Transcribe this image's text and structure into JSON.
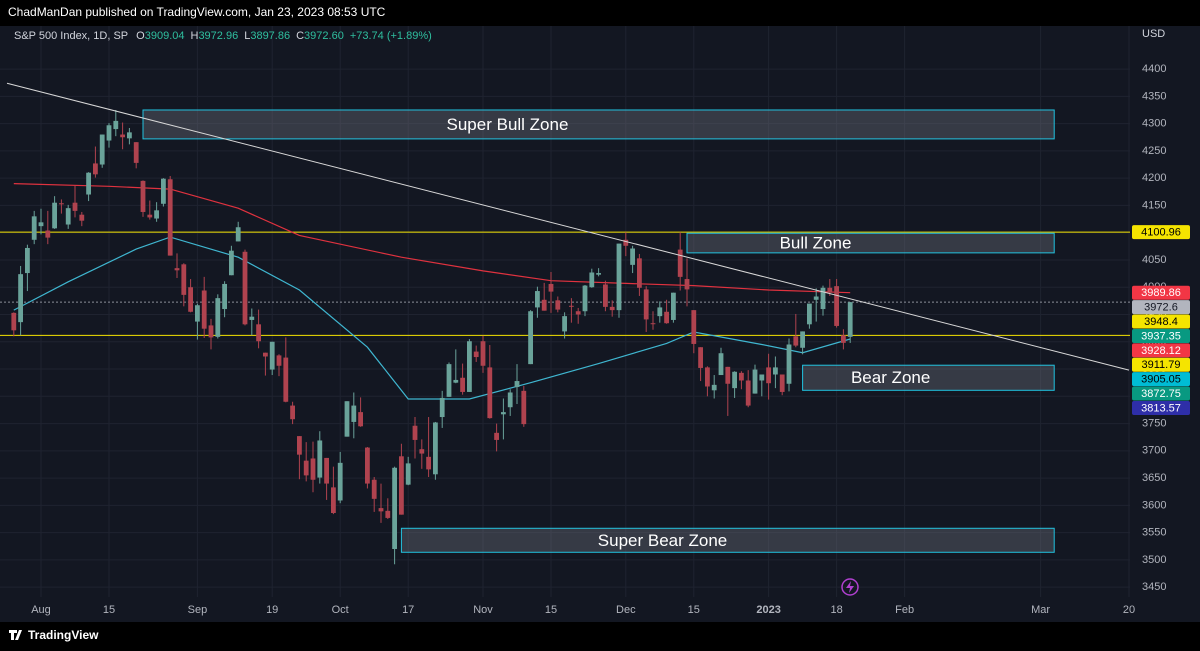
{
  "header": {
    "publisher": "ChadManDan published on TradingView.com, Jan 23, 2023 08:53 UTC",
    "symbol": "S&P 500 Index, 1D, SP",
    "ohlc": [
      {
        "key": "O",
        "value": "3909.04"
      },
      {
        "key": "H",
        "value": "3972.96"
      },
      {
        "key": "L",
        "value": "3897.86"
      },
      {
        "key": "C",
        "value": "3972.60"
      }
    ],
    "change": "+73.74 (+1.89%)"
  },
  "currency": "USD",
  "footer": "TradingView",
  "chart_data": {
    "type": "candlestick",
    "up_color": "#6aa39a",
    "down_color": "#b0434f",
    "grid": true,
    "categories": [
      "2022-07-26",
      "2022-07-27",
      "2022-07-28",
      "2022-07-29",
      "2022-08-01",
      "2022-08-02",
      "2022-08-03",
      "2022-08-04",
      "2022-08-05",
      "2022-08-08",
      "2022-08-09",
      "2022-08-10",
      "2022-08-11",
      "2022-08-12",
      "2022-08-15",
      "2022-08-16",
      "2022-08-17",
      "2022-08-18",
      "2022-08-19",
      "2022-08-22",
      "2022-08-23",
      "2022-08-24",
      "2022-08-25",
      "2022-08-26",
      "2022-08-29",
      "2022-08-30",
      "2022-08-31",
      "2022-09-01",
      "2022-09-02",
      "2022-09-06",
      "2022-09-07",
      "2022-09-08",
      "2022-09-09",
      "2022-09-12",
      "2022-09-13",
      "2022-09-14",
      "2022-09-15",
      "2022-09-16",
      "2022-09-19",
      "2022-09-20",
      "2022-09-21",
      "2022-09-22",
      "2022-09-23",
      "2022-09-26",
      "2022-09-27",
      "2022-09-28",
      "2022-09-29",
      "2022-09-30",
      "2022-10-03",
      "2022-10-04",
      "2022-10-05",
      "2022-10-06",
      "2022-10-07",
      "2022-10-10",
      "2022-10-11",
      "2022-10-12",
      "2022-10-13",
      "2022-10-14",
      "2022-10-17",
      "2022-10-18",
      "2022-10-19",
      "2022-10-20",
      "2022-10-21",
      "2022-10-24",
      "2022-10-25",
      "2022-10-26",
      "2022-10-27",
      "2022-10-28",
      "2022-10-31",
      "2022-11-01",
      "2022-11-02",
      "2022-11-03",
      "2022-11-04",
      "2022-11-07",
      "2022-11-08",
      "2022-11-09",
      "2022-11-10",
      "2022-11-11",
      "2022-11-14",
      "2022-11-15",
      "2022-11-16",
      "2022-11-17",
      "2022-11-18",
      "2022-11-21",
      "2022-11-22",
      "2022-11-23",
      "2022-11-25",
      "2022-11-28",
      "2022-11-29",
      "2022-11-30",
      "2022-12-01",
      "2022-12-02",
      "2022-12-05",
      "2022-12-06",
      "2022-12-07",
      "2022-12-08",
      "2022-12-09",
      "2022-12-12",
      "2022-12-13",
      "2022-12-14",
      "2022-12-15",
      "2022-12-16",
      "2022-12-19",
      "2022-12-20",
      "2022-12-21",
      "2022-12-22",
      "2022-12-23",
      "2022-12-27",
      "2022-12-28",
      "2022-12-29",
      "2022-12-30",
      "2023-01-03",
      "2023-01-04",
      "2023-01-05",
      "2023-01-06",
      "2023-01-09",
      "2023-01-10",
      "2023-01-11",
      "2023-01-12",
      "2023-01-13",
      "2023-01-17",
      "2023-01-18",
      "2023-01-19",
      "2023-01-20"
    ],
    "open": [
      3953,
      3936,
      4026,
      4087,
      4112,
      4104,
      4108,
      4154,
      4115,
      4155,
      4133,
      4170,
      4227,
      4225,
      4269,
      4290,
      4280,
      4273,
      4266,
      4195,
      4133,
      4126,
      4153,
      4198,
      4035,
      4042,
      4000,
      3937,
      3994,
      3930,
      3909,
      3960,
      4022,
      4084,
      4065,
      3940,
      3932,
      3880,
      3849,
      3875,
      3871,
      3783,
      3727,
      3682,
      3686,
      3651,
      3687,
      3633,
      3609,
      3726,
      3753,
      3771,
      3706,
      3647,
      3595,
      3590,
      3520,
      3690,
      3638,
      3746,
      3703,
      3689,
      3657,
      3762,
      3799,
      3825,
      3834,
      3808,
      3882,
      3901,
      3853,
      3733,
      3767,
      3780,
      3817,
      3810,
      3859,
      3963,
      3977,
      4006,
      3976,
      3919,
      3966,
      3956,
      3956,
      4000,
      4023,
      4005,
      3964,
      3958,
      4087,
      4041,
      4053,
      3996,
      3934,
      3947,
      3955,
      3940,
      4069,
      4015,
      3958,
      3890,
      3853,
      3811,
      3839,
      3854,
      3815,
      3843,
      3829,
      3805,
      3829,
      3853,
      3840,
      3840,
      3823,
      3910,
      3889,
      3932,
      3977,
      3960,
      3999,
      4002,
      3912,
      3909.04
    ],
    "high": [
      3954,
      4039,
      4078,
      4140,
      4144,
      4140,
      4167,
      4161,
      4151,
      4187,
      4138,
      4211,
      4258,
      4280,
      4301,
      4325,
      4302,
      4292,
      4266,
      4196,
      4159,
      4156,
      4200,
      4204,
      4062,
      4044,
      4015,
      3970,
      4019,
      3942,
      3987,
      4011,
      4076,
      4120,
      4069,
      3961,
      3959,
      3880,
      3900,
      3877,
      3908,
      3790,
      3727,
      3716,
      3717,
      3736,
      3687,
      3671,
      3698,
      3791,
      3807,
      3798,
      3707,
      3652,
      3640,
      3613,
      3671,
      3713,
      3689,
      3762,
      3721,
      3762,
      3753,
      3810,
      3862,
      3886,
      3860,
      3905,
      3893,
      3911,
      3894,
      3750,
      3796,
      3813,
      3859,
      3819,
      3958,
      4001,
      4008,
      4028,
      3983,
      3954,
      3980,
      3962,
      4004,
      4034,
      4035,
      4012,
      3976,
      4080,
      4101,
      4076,
      4061,
      4002,
      3956,
      3974,
      3977,
      3990,
      4101,
      4053,
      3958,
      3890,
      3855,
      3839,
      3889,
      3854,
      3846,
      3846,
      3848,
      3858,
      3840,
      3878,
      3873,
      3840,
      3906,
      3951,
      3919,
      3970,
      3998,
      4003,
      4015,
      4015,
      3923,
      3972.96
    ],
    "low": [
      3910,
      3912,
      3993,
      4079,
      4097,
      4079,
      4107,
      4135,
      4107,
      4128,
      4112,
      4158,
      4201,
      4219,
      4256,
      4277,
      4253,
      4262,
      4218,
      4129,
      4124,
      4120,
      4148,
      4058,
      4017,
      3965,
      3954,
      3904,
      3907,
      3886,
      3906,
      3945,
      4022,
      4084,
      3930,
      3912,
      3888,
      3838,
      3839,
      3837,
      3789,
      3749,
      3648,
      3644,
      3624,
      3640,
      3610,
      3584,
      3604,
      3726,
      3723,
      3744,
      3631,
      3588,
      3568,
      3575,
      3492,
      3583,
      3637,
      3686,
      3667,
      3652,
      3647,
      3742,
      3799,
      3824,
      3803,
      3808,
      3863,
      3843,
      3759,
      3699,
      3721,
      3764,
      3786,
      3744,
      3859,
      3944,
      3957,
      3953,
      3954,
      3906,
      3935,
      3933,
      3947,
      3999,
      4020,
      3956,
      3946,
      3944,
      4057,
      4026,
      3984,
      3918,
      3922,
      3935,
      3933,
      3935,
      3994,
      3965,
      3879,
      3828,
      3800,
      3796,
      3839,
      3764,
      3797,
      3813,
      3780,
      3805,
      3800,
      3794,
      3815,
      3802,
      3809,
      3890,
      3877,
      3924,
      3937,
      3948,
      3984,
      3926,
      3886,
      3897.86
    ],
    "close": [
      3921,
      4024,
      4072,
      4130,
      4119,
      4091,
      4155,
      4152,
      4145,
      4140,
      4122,
      4210,
      4207,
      4280,
      4297,
      4305,
      4275,
      4284,
      4228,
      4138,
      4128,
      4141,
      4199,
      4058,
      4031,
      3986,
      3955,
      3967,
      3924,
      3908,
      3980,
      4006,
      4067,
      4110,
      3932,
      3946,
      3901,
      3873,
      3900,
      3856,
      3790,
      3758,
      3693,
      3655,
      3647,
      3719,
      3640,
      3586,
      3678,
      3791,
      3783,
      3745,
      3640,
      3612,
      3589,
      3577,
      3669,
      3583,
      3677,
      3720,
      3695,
      3666,
      3752,
      3797,
      3859,
      3830,
      3808,
      3901,
      3872,
      3856,
      3760,
      3720,
      3771,
      3807,
      3828,
      3749,
      3956,
      3993,
      3957,
      3992,
      3959,
      3947,
      3965,
      3950,
      4003,
      4027,
      4026,
      3964,
      3958,
      4080,
      4076,
      4071,
      3999,
      3941,
      3933,
      3963,
      3934,
      3990,
      4019,
      3996,
      3896,
      3852,
      3818,
      3821,
      3879,
      3823,
      3845,
      3829,
      3783,
      3849,
      3840,
      3824,
      3853,
      3808,
      3895,
      3893,
      3919,
      3970,
      3983,
      3999,
      3990,
      3929,
      3898,
      3972.6
    ],
    "moving_averages": [
      {
        "color": "#e0323f",
        "x": [
          "2022-07-26",
          "2022-08-15",
          "2022-08-26",
          "2022-09-12",
          "2022-09-23",
          "2022-10-14",
          "2022-11-01",
          "2022-11-15",
          "2022-12-01",
          "2022-12-15",
          "2023-01-03",
          "2023-01-20"
        ],
        "values": [
          4190,
          4185,
          4180,
          4145,
          4095,
          4055,
          4030,
          4012,
          4007,
          4003,
          3995,
          3990
        ]
      },
      {
        "color": "#3fb6d0",
        "x": [
          "2022-07-26",
          "2022-08-05",
          "2022-08-19",
          "2022-08-26",
          "2022-09-12",
          "2022-09-23",
          "2022-10-07",
          "2022-10-17",
          "2022-10-28",
          "2022-11-10",
          "2022-11-25",
          "2022-12-09",
          "2022-12-15",
          "2022-12-30",
          "2023-01-10",
          "2023-01-20"
        ],
        "values": [
          3958,
          4010,
          4070,
          4092,
          4055,
          3995,
          3890,
          3795,
          3795,
          3825,
          3860,
          3897,
          3918,
          3895,
          3880,
          3905
        ]
      }
    ],
    "trendline": {
      "color": "#d8d8d8",
      "x": [
        "2022-07-25",
        "2023-03-20"
      ],
      "values": [
        4374,
        3848
      ]
    },
    "hlines": [
      {
        "value": 4100.96,
        "color": "#f5e400",
        "style": "solid"
      },
      {
        "value": 3911.79,
        "color": "#f5e400",
        "style": "solid"
      },
      {
        "value": 3972.6,
        "color": "#8a8e99",
        "style": "dotted"
      }
    ],
    "zones": [
      {
        "label": "Super Bull Zone",
        "x": [
          "2022-08-22",
          "2023-03-03"
        ],
        "values": [
          4325,
          4272
        ]
      },
      {
        "label": "Bull Zone",
        "x": [
          "2022-12-14",
          "2023-03-03"
        ],
        "values": [
          4099,
          4063
        ]
      },
      {
        "label": "Bear Zone",
        "x": [
          "2023-01-10",
          "2023-03-03"
        ],
        "values": [
          3857,
          3811
        ]
      },
      {
        "label": "Super Bear Zone",
        "x": [
          "2022-10-14",
          "2023-03-03"
        ],
        "values": [
          3558,
          3514
        ]
      }
    ],
    "price_labels": [
      {
        "value": 4100.96,
        "color": "#f5e400",
        "text_color": "#000000"
      },
      {
        "value": 3989.86,
        "color": "#f23645",
        "text_color": "#ffffff"
      },
      {
        "value": 3972.6,
        "color": "#b2b5be",
        "text_color": "#131722"
      },
      {
        "value": 3948.4,
        "color": "#f5e400",
        "text_color": "#000000"
      },
      {
        "value": 3937.35,
        "color": "#089981",
        "text_color": "#ffffff"
      },
      {
        "value": 3928.12,
        "color": "#f23645",
        "text_color": "#ffffff"
      },
      {
        "value": 3911.79,
        "color": "#f5e400",
        "text_color": "#000000"
      },
      {
        "value": 3905.05,
        "color": "#00bcd4",
        "text_color": "#000000"
      },
      {
        "value": 3872.75,
        "color": "#089981",
        "text_color": "#ffffff"
      },
      {
        "value": 3813.57,
        "color": "#2e2ea8",
        "text_color": "#ffffff"
      }
    ],
    "ylim": [
      3432,
      4479
    ],
    "yticks": [
      3450,
      3500,
      3550,
      3600,
      3650,
      3700,
      3750,
      3800,
      3850,
      3900,
      3950,
      4000,
      4050,
      4100,
      4150,
      4200,
      4250,
      4300,
      4350,
      4400
    ],
    "xticks": [
      {
        "value": "2022-08-01",
        "label": "Aug"
      },
      {
        "value": "2022-08-15",
        "label": "15"
      },
      {
        "value": "2022-09-01",
        "label": "Sep"
      },
      {
        "value": "2022-09-19",
        "label": "19"
      },
      {
        "value": "2022-10-03",
        "label": "Oct"
      },
      {
        "value": "2022-10-17",
        "label": "17"
      },
      {
        "value": "2022-11-01",
        "label": "Nov"
      },
      {
        "value": "2022-11-15",
        "label": "15"
      },
      {
        "value": "2022-12-01",
        "label": "Dec"
      },
      {
        "value": "2022-12-15",
        "label": "15"
      },
      {
        "value": "2023-01-03",
        "label": "2023"
      },
      {
        "value": "2023-01-18",
        "label": "18"
      },
      {
        "value": "2023-02-01",
        "label": "Feb"
      },
      {
        "value": "2023-03-01",
        "label": "Mar"
      },
      {
        "value": "2023-03-20",
        "label": "20"
      }
    ]
  }
}
